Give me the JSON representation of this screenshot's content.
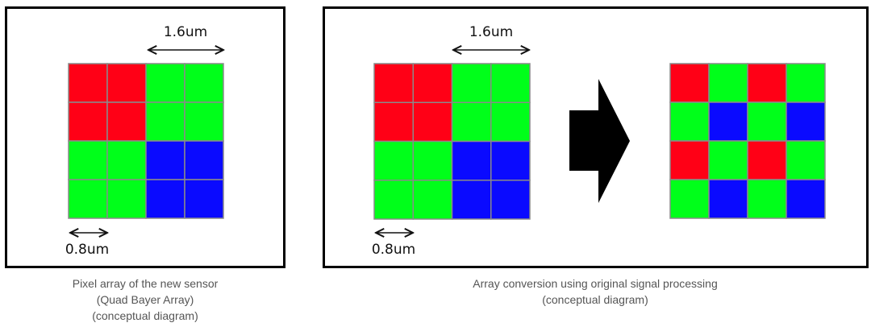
{
  "colors": {
    "R": "#ff0016",
    "G": "#00ff1a",
    "B": "#0a0aff",
    "grid_line": "#8a8a8a"
  },
  "left_panel": {
    "dimension_large": "1.6um",
    "dimension_small": "0.8um",
    "grid": [
      [
        "R",
        "R",
        "G",
        "G"
      ],
      [
        "R",
        "R",
        "G",
        "G"
      ],
      [
        "G",
        "G",
        "B",
        "B"
      ],
      [
        "G",
        "G",
        "B",
        "B"
      ]
    ],
    "caption": [
      "Pixel array of the new sensor",
      "(Quad Bayer Array)",
      "(conceptual diagram)"
    ]
  },
  "right_panel": {
    "dimension_large": "1.6um",
    "dimension_small": "0.8um",
    "grid_before": [
      [
        "R",
        "R",
        "G",
        "G"
      ],
      [
        "R",
        "R",
        "G",
        "G"
      ],
      [
        "G",
        "G",
        "B",
        "B"
      ],
      [
        "G",
        "G",
        "B",
        "B"
      ]
    ],
    "grid_after": [
      [
        "R",
        "G",
        "R",
        "G"
      ],
      [
        "G",
        "B",
        "G",
        "B"
      ],
      [
        "R",
        "G",
        "R",
        "G"
      ],
      [
        "G",
        "B",
        "G",
        "B"
      ]
    ],
    "arrow": "right-arrow-icon",
    "caption": [
      "Array conversion using original signal processing",
      "(conceptual diagram)"
    ]
  }
}
